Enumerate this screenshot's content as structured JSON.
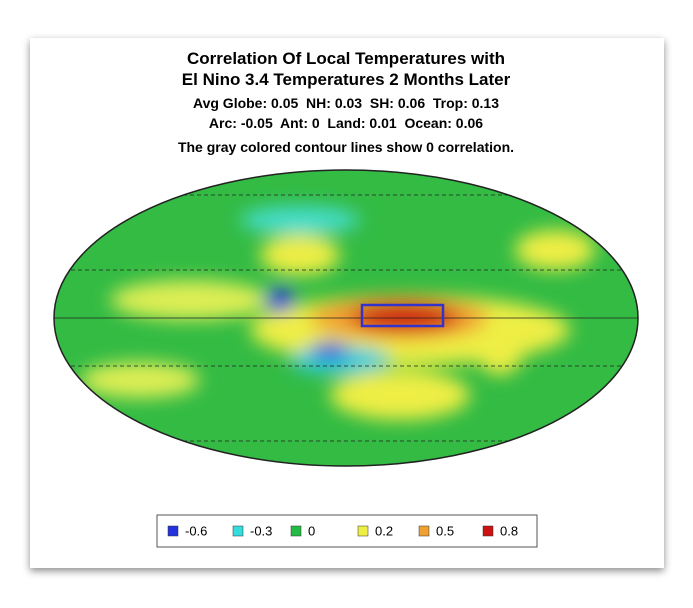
{
  "header": {
    "title_lines": [
      "Correlation Of Local Temperatures with",
      "El Nino 3.4 Temperatures 2 Months Later"
    ],
    "stats_lines": [
      "Avg Globe: 0.05  NH: 0.03  SH: 0.06  Trop: 0.13",
      "Arc: -0.05  Ant: 0  Land: 0.01  Ocean: 0.06"
    ],
    "note": "The gray colored contour lines show 0 correlation."
  },
  "legend": {
    "items": [
      {
        "label": "-0.6",
        "color": "#2233dd"
      },
      {
        "label": "-0.3",
        "color": "#33dddd"
      },
      {
        "label": "0",
        "color": "#22bb44"
      },
      {
        "label": "0.2",
        "color": "#eeee44"
      },
      {
        "label": "0.5",
        "color": "#f0a030"
      },
      {
        "label": "0.8",
        "color": "#cc1111"
      }
    ]
  }
}
